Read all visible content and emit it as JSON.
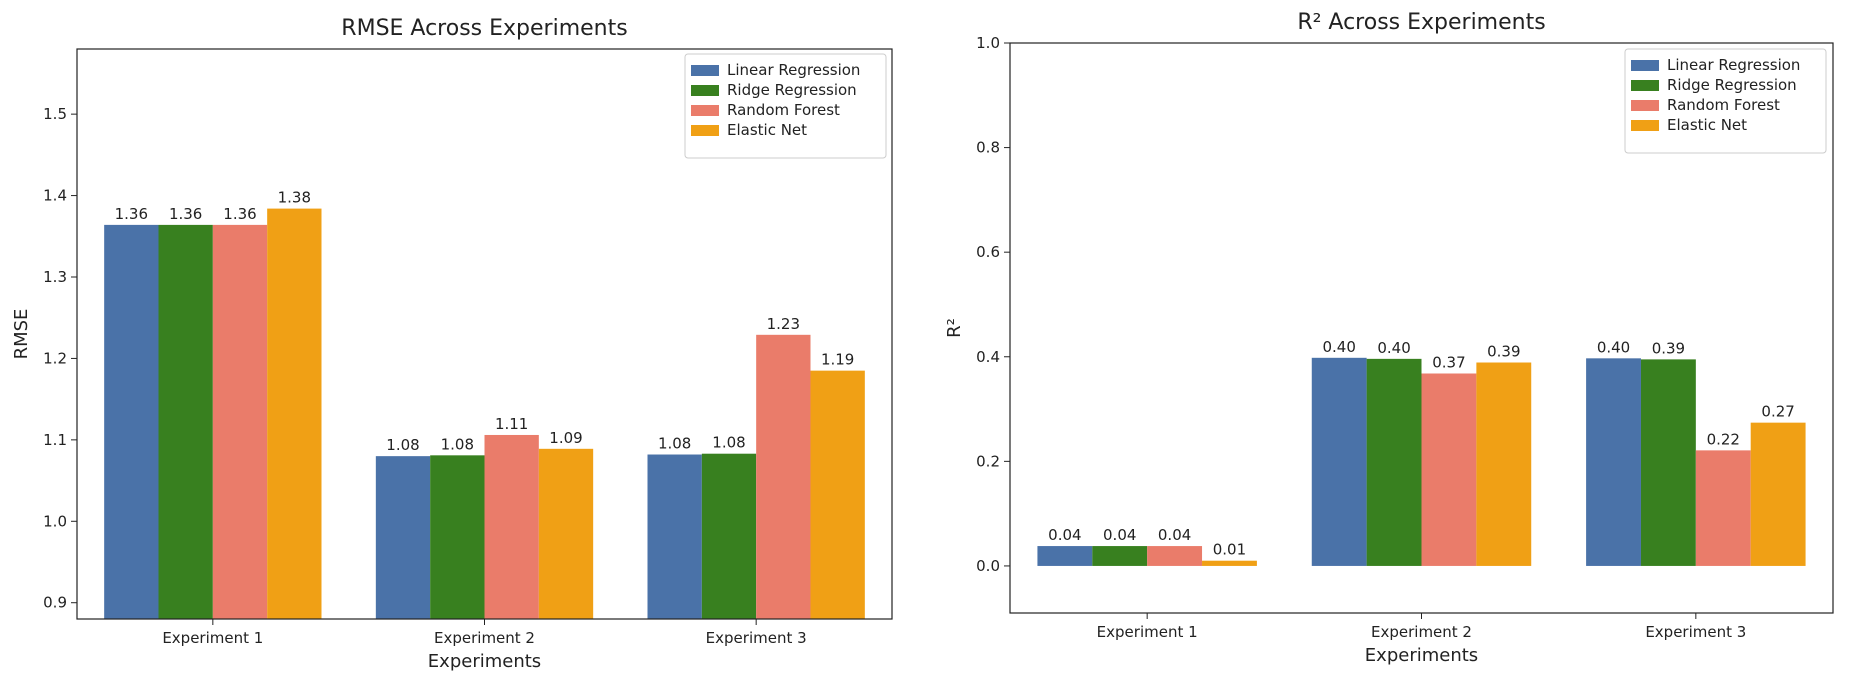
{
  "chart_data": [
    {
      "type": "bar",
      "title": "RMSE Across Experiments",
      "xlabel": "Experiments",
      "ylabel": "RMSE",
      "ylim": [
        0.88,
        1.58
      ],
      "yticks": [
        "0.9",
        "1.0",
        "1.1",
        "1.2",
        "1.3",
        "1.4",
        "1.5"
      ],
      "categories": [
        "Experiment 1",
        "Experiment 2",
        "Experiment 3"
      ],
      "legend_position": "top-right",
      "grid": false,
      "series": [
        {
          "name": "Linear Regression",
          "color": "#4a72a8",
          "values": [
            1.364,
            1.08,
            1.082
          ],
          "labels": [
            "1.36",
            "1.08",
            "1.08"
          ]
        },
        {
          "name": "Ridge Regression",
          "color": "#38801f",
          "values": [
            1.364,
            1.081,
            1.083
          ],
          "labels": [
            "1.36",
            "1.08",
            "1.08"
          ]
        },
        {
          "name": "Random Forest",
          "color": "#ea7c6a",
          "values": [
            1.364,
            1.106,
            1.229
          ],
          "labels": [
            "1.36",
            "1.11",
            "1.23"
          ]
        },
        {
          "name": "Elastic Net",
          "color": "#f0a015",
          "values": [
            1.384,
            1.089,
            1.185
          ],
          "labels": [
            "1.38",
            "1.09",
            "1.19"
          ]
        }
      ]
    },
    {
      "type": "bar",
      "title": "R² Across Experiments",
      "xlabel": "Experiments",
      "ylabel": "R²",
      "ylim": [
        -0.09,
        1.0
      ],
      "yticks": [
        "0.0",
        "0.2",
        "0.4",
        "0.6",
        "0.8",
        "1.0"
      ],
      "categories": [
        "Experiment 1",
        "Experiment 2",
        "Experiment 3"
      ],
      "legend_position": "top-right",
      "grid": false,
      "series": [
        {
          "name": "Linear Regression",
          "color": "#4a72a8",
          "values": [
            0.038,
            0.398,
            0.397
          ],
          "labels": [
            "0.04",
            "0.40",
            "0.40"
          ]
        },
        {
          "name": "Ridge Regression",
          "color": "#38801f",
          "values": [
            0.038,
            0.396,
            0.395
          ],
          "labels": [
            "0.04",
            "0.40",
            "0.39"
          ]
        },
        {
          "name": "Random Forest",
          "color": "#ea7c6a",
          "values": [
            0.038,
            0.368,
            0.221
          ],
          "labels": [
            "0.04",
            "0.37",
            "0.22"
          ]
        },
        {
          "name": "Elastic Net",
          "color": "#f0a015",
          "values": [
            0.01,
            0.389,
            0.274
          ],
          "labels": [
            "0.01",
            "0.39",
            "0.27"
          ]
        }
      ]
    }
  ]
}
